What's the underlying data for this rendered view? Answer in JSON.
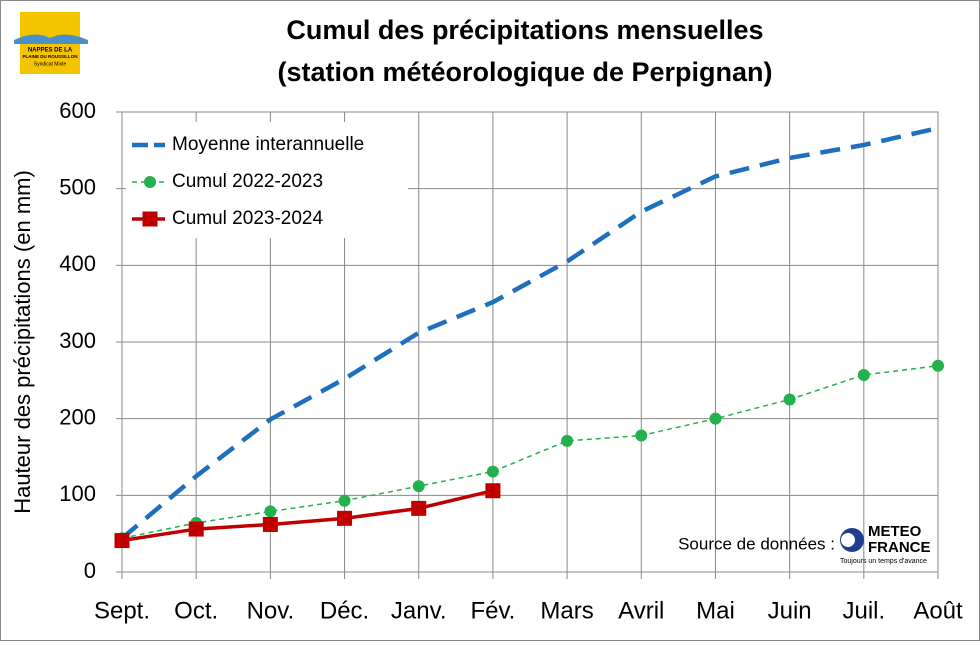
{
  "chart_data": {
    "type": "line",
    "title": [
      "Cumul des précipitations mensuelles",
      "(station météorologique de Perpignan)"
    ],
    "y_label": "Hauteur des précipitations (en mm)",
    "categories": [
      "Sept.",
      "Oct.",
      "Nov.",
      "Déc.",
      "Janv.",
      "Fév.",
      "Mars",
      "Avril",
      "Mai",
      "Juin",
      "Juil.",
      "Août"
    ],
    "series": [
      {
        "name": "Moyenne interannuelle",
        "color": "#1f6fbf",
        "line": "dashed",
        "marker": "none",
        "values": [
          44,
          125,
          199,
          252,
          312,
          352,
          405,
          470,
          516,
          540,
          557,
          579
        ]
      },
      {
        "name": "Cumul 2022-2023",
        "color": "#22b14c",
        "line": "dotted",
        "marker": "circle",
        "values": [
          44,
          64,
          79,
          93,
          112,
          131,
          171,
          178,
          200,
          225,
          257,
          269
        ]
      },
      {
        "name": "Cumul 2023-2024",
        "color": "#c00000",
        "line": "solid",
        "marker": "square",
        "values": [
          41,
          56,
          62,
          70,
          83,
          106,
          null,
          null,
          null,
          null,
          null,
          null
        ]
      }
    ],
    "ylim": [
      0,
      600
    ],
    "yticks": [
      0,
      100,
      200,
      300,
      400,
      500,
      600
    ],
    "grid": true,
    "legend": "top-left",
    "source": "Source de données :",
    "logo_left": [
      "NAPPES DE LA",
      "PLAINE DU ROUSSILLON",
      "Syndicat Mixte"
    ],
    "logo_right": [
      "METEO",
      "FRANCE",
      "Toujours un temps d'avance"
    ]
  }
}
